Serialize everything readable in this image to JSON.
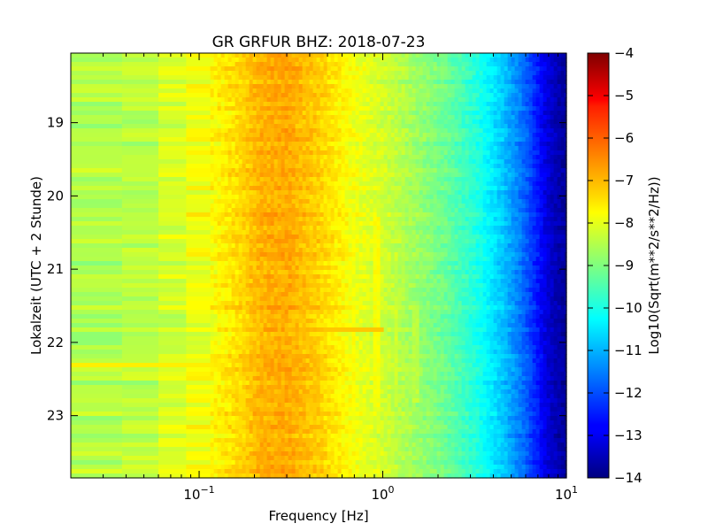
{
  "chart_data": {
    "type": "heatmap",
    "title": "GR GRFUR BHZ: 2018-07-23",
    "xlabel": "Frequency [Hz]",
    "ylabel": "Lokalzeit (UTC + 2 Stunde)",
    "x_scale": "log",
    "xlim": [
      0.02,
      10
    ],
    "x_ticks": [
      {
        "value": 0.1,
        "base": "10",
        "exp": "−1"
      },
      {
        "value": 1,
        "base": "10",
        "exp": "0"
      },
      {
        "value": 10,
        "base": "10",
        "exp": "1"
      }
    ],
    "ylim": [
      18.05,
      23.85
    ],
    "y_inverted": true,
    "y_ticks": [
      "19",
      "20",
      "21",
      "22",
      "23"
    ],
    "colorbar": {
      "label": "Log10(Sqrt(m**2/s**2/Hz))",
      "range": [
        -14,
        -4
      ],
      "ticks": [
        "−4",
        "−5",
        "−6",
        "−7",
        "−8",
        "−9",
        "−10",
        "−11",
        "−12",
        "−13",
        "−14"
      ],
      "colormap": "jet"
    },
    "spectrum_profile": {
      "frequency_hz": [
        0.02,
        0.05,
        0.1,
        0.15,
        0.22,
        0.3,
        0.45,
        0.7,
        1.0,
        1.5,
        2.2,
        3.2,
        4.5,
        6.0,
        8.0,
        10.0
      ],
      "log10_amplitude": [
        -8.6,
        -8.4,
        -7.9,
        -7.5,
        -7.0,
        -6.9,
        -7.3,
        -7.9,
        -8.2,
        -8.7,
        -9.2,
        -9.9,
        -10.8,
        -11.8,
        -13.2,
        -13.8
      ]
    },
    "features": [
      {
        "type": "line",
        "time": 21.85,
        "freq_from": 0.35,
        "freq_to": 1.0,
        "value": -7.2
      },
      {
        "type": "line",
        "time": 22.3,
        "freq_from": 0.02,
        "freq_to": 0.1,
        "value": -7.6
      },
      {
        "type": "vertical",
        "freq": 0.7,
        "time_from": 21.5,
        "time_to": 22.9,
        "value": -7.8
      },
      {
        "type": "vertical",
        "freq": 0.93,
        "time_from": 20.3,
        "time_to": 22.9,
        "value": -7.8
      },
      {
        "type": "vertical",
        "freq": 1.18,
        "time_from": 21.5,
        "time_to": 22.9,
        "value": -8.2
      },
      {
        "type": "vertical",
        "freq": 1.5,
        "time_from": 21.5,
        "time_to": 22.8,
        "value": -8.4
      }
    ]
  }
}
